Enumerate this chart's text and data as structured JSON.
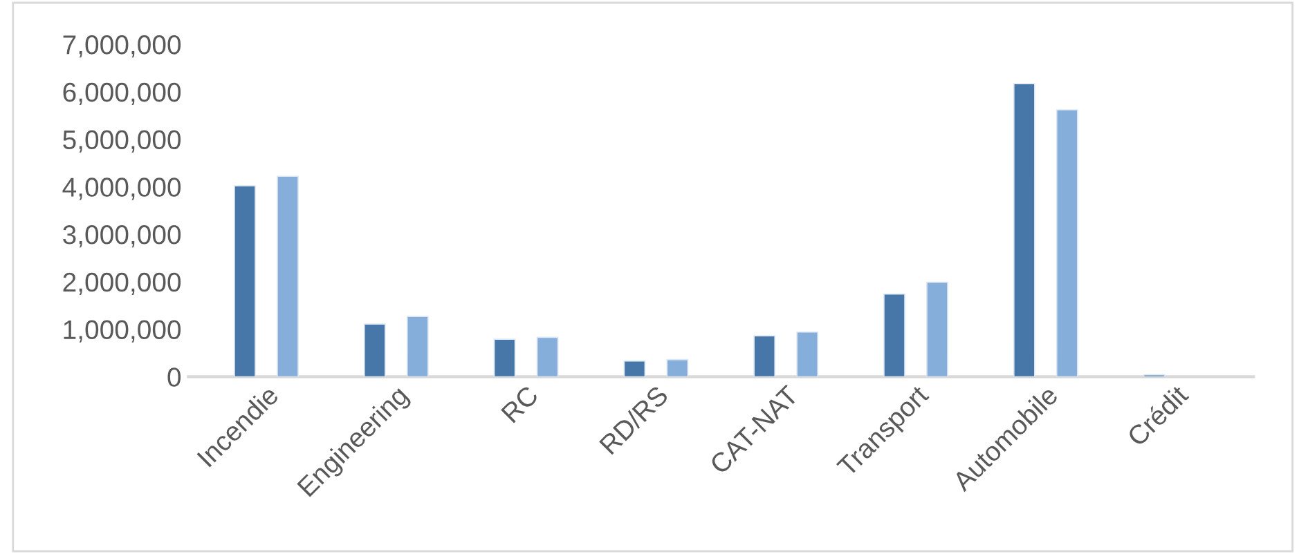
{
  "chart_data": {
    "type": "bar",
    "categories": [
      "Incendie",
      "Engineering",
      "RC",
      "RD/RS",
      "CAT-NAT",
      "Transport",
      "Automobile",
      "Crédit"
    ],
    "series": [
      {
        "color": "#4677a8",
        "values": [
          4020000,
          1110000,
          790000,
          330000,
          860000,
          1740000,
          6170000,
          40000
        ]
      },
      {
        "color": "#86aedb",
        "values": [
          4220000,
          1270000,
          830000,
          360000,
          940000,
          1990000,
          5620000,
          null
        ]
      }
    ],
    "ylim": [
      0,
      7000000
    ],
    "yticks": [
      {
        "value": 0,
        "label": "0"
      },
      {
        "value": 1000000,
        "label": "1,000,000"
      },
      {
        "value": 2000000,
        "label": "2,000,000"
      },
      {
        "value": 3000000,
        "label": "3,000,000"
      },
      {
        "value": 4000000,
        "label": "4,000,000"
      },
      {
        "value": 5000000,
        "label": "5,000,000"
      },
      {
        "value": 6000000,
        "label": "6,000,000"
      },
      {
        "value": 7000000,
        "label": "7,000,000"
      }
    ],
    "grid": false,
    "legend": false
  }
}
